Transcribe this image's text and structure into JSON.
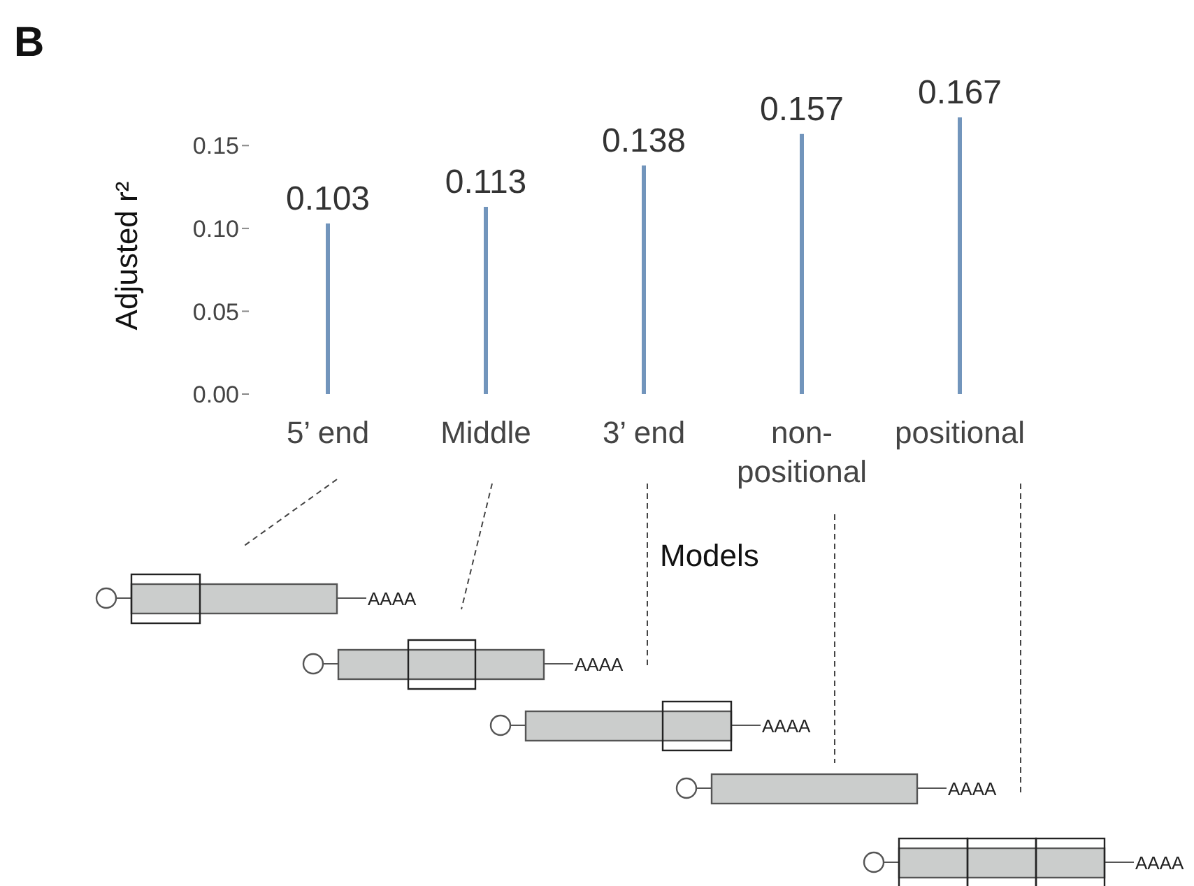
{
  "chart_data": {
    "type": "bar",
    "xlabel": "Models",
    "ylabel": "Adjusted r²",
    "categories": [
      "5’ end",
      "Middle",
      "3’ end",
      "non-\npositional",
      "positional"
    ],
    "values": [
      0.103,
      0.113,
      0.138,
      0.157,
      0.167
    ],
    "color": "#7295bc",
    "data_labels": true,
    "grid": false,
    "legend": false,
    "ylim": [
      0,
      0.167
    ],
    "yticks": [
      {
        "value": 0,
        "label": "0.00"
      },
      0.05,
      {
        "value": 0.1,
        "label": "0.10"
      },
      0.15
    ],
    "annotations": [
      "B",
      "AAAA",
      "AAAA",
      "AAAA",
      "AAAA",
      "AAAA"
    ]
  }
}
